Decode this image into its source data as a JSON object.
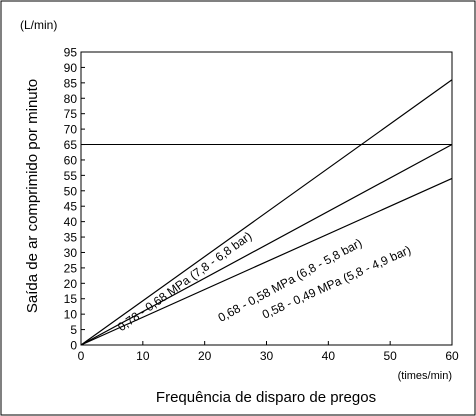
{
  "chart_data": {
    "type": "line",
    "title": "",
    "xlabel": "Frequência de disparo de pregos",
    "ylabel": "Saída de ar comprimido por minuto",
    "x_unit": "(times/min)",
    "y_unit": "(L/min)",
    "xlim": [
      0,
      60
    ],
    "ylim": [
      0,
      95
    ],
    "xticks": [
      0,
      10,
      20,
      30,
      40,
      50,
      60
    ],
    "yticks": [
      0,
      5,
      10,
      15,
      20,
      25,
      30,
      35,
      40,
      45,
      50,
      55,
      60,
      65,
      70,
      75,
      80,
      85,
      90,
      95
    ],
    "grid": false,
    "series": [
      {
        "name": "0,78 - 0,68 MPa (7,8 - 6,8 bar)",
        "x": [
          0,
          60
        ],
        "y": [
          0,
          86
        ]
      },
      {
        "name": "0,68 - 0,58 MPa (6,8 - 5,8 bar)",
        "x": [
          0,
          60
        ],
        "y": [
          0,
          65
        ]
      },
      {
        "name": "0,58 - 0,49 MPa (5,8 - 4,9 bar)",
        "x": [
          0,
          60
        ],
        "y": [
          0,
          54
        ]
      }
    ],
    "reference_lines": [
      {
        "axis": "y",
        "value": 65
      }
    ]
  }
}
